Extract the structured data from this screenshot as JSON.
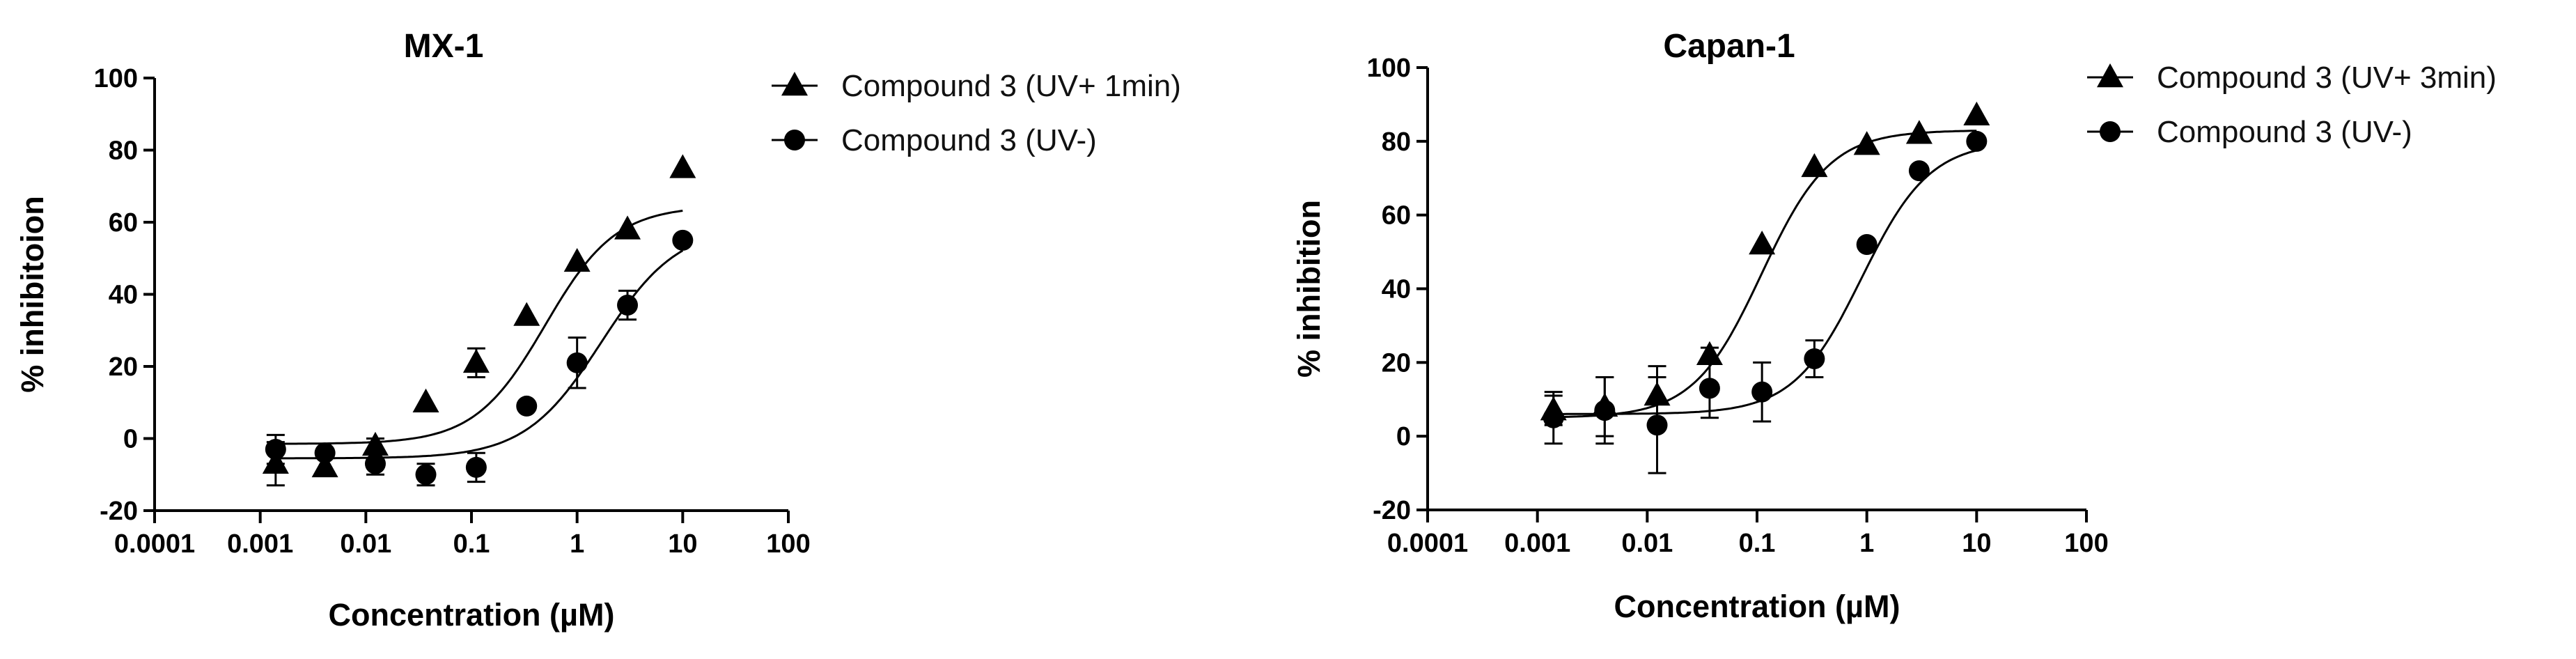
{
  "chart_data": [
    {
      "type": "scatter",
      "title": "MX-1",
      "xlabel": "Concentration (µM)",
      "ylabel": "% inhibitoion",
      "xscale": "log",
      "xlim": [
        0.0001,
        100
      ],
      "ylim": [
        -20,
        100
      ],
      "xticks": [
        "0.0001",
        "0.001",
        "0.01",
        "0.1",
        "1",
        "10",
        "100"
      ],
      "yticks": [
        "-20",
        "0",
        "20",
        "40",
        "60",
        "80",
        "100"
      ],
      "legend_position": "top-right",
      "series": [
        {
          "name": "Compound 3 (UV+ 1min)",
          "marker": "triangle",
          "x": [
            0.0014,
            0.0041,
            0.0123,
            0.037,
            0.111,
            0.333,
            1.0,
            3.0,
            10.0
          ],
          "y": [
            -7,
            -8,
            -2,
            10,
            21,
            34,
            49,
            58,
            75
          ],
          "error": [
            6,
            1,
            2,
            1,
            4,
            1,
            1,
            1,
            1
          ],
          "fit": {
            "bottom": -1.5,
            "top": 64.5,
            "ec50": 0.5,
            "hill": 1.3
          }
        },
        {
          "name": "Compound 3 (UV-)",
          "marker": "circle",
          "x": [
            0.0014,
            0.0041,
            0.0123,
            0.037,
            0.111,
            0.333,
            1.0,
            3.0,
            10.0
          ],
          "y": [
            -3,
            -4,
            -7,
            -10,
            -8,
            9,
            21,
            37,
            55
          ],
          "error": [
            4,
            1,
            3,
            3,
            4,
            1,
            7,
            4,
            1
          ],
          "fit": {
            "bottom": -5.5,
            "top": 59,
            "ec50": 1.7,
            "hill": 1.2
          }
        }
      ]
    },
    {
      "type": "scatter",
      "title": "Capan-1",
      "xlabel": "Concentration (µM)",
      "ylabel": "% inhibition",
      "xscale": "log",
      "xlim": [
        0.0001,
        100
      ],
      "ylim": [
        -20,
        100
      ],
      "xticks": [
        "0.0001",
        "0.001",
        "0.01",
        "0.1",
        "1",
        "10",
        "100"
      ],
      "yticks": [
        "-20",
        "0",
        "20",
        "40",
        "60",
        "80",
        "100"
      ],
      "legend_position": "top-right",
      "series": [
        {
          "name": "Compound 3 (UV+ 3min)",
          "marker": "triangle",
          "x": [
            0.0014,
            0.0041,
            0.0123,
            0.037,
            0.111,
            0.333,
            1.0,
            3.0,
            10.0
          ],
          "y": [
            7,
            8,
            11,
            22,
            52,
            73,
            79,
            82,
            87
          ],
          "error": [
            4,
            8,
            8,
            2,
            1,
            1,
            1,
            1,
            1
          ],
          "fit": {
            "bottom": 5,
            "top": 83,
            "ec50": 0.11,
            "hill": 1.4
          }
        },
        {
          "name": "Compound 3 (UV-)",
          "marker": "circle",
          "x": [
            0.0014,
            0.0041,
            0.0123,
            0.037,
            0.111,
            0.333,
            1.0,
            3.0,
            10.0
          ],
          "y": [
            5,
            7,
            3,
            13,
            12,
            21,
            52,
            72,
            80
          ],
          "error": [
            7,
            9,
            13,
            8,
            8,
            5,
            1,
            1,
            1
          ],
          "fit": {
            "bottom": 6,
            "top": 80,
            "ec50": 0.9,
            "hill": 1.4
          }
        }
      ]
    }
  ]
}
